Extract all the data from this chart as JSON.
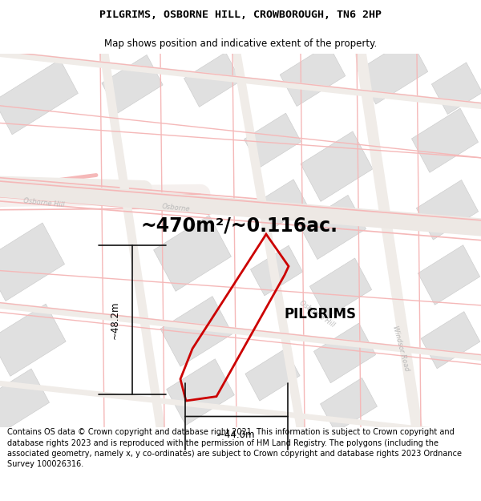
{
  "title": "PILGRIMS, OSBORNE HILL, CROWBOROUGH, TN6 2HP",
  "subtitle": "Map shows position and indicative extent of the property.",
  "area_text": "~470m²/~0.116ac.",
  "label": "PILGRIMS",
  "dim_width": "~44.0m",
  "dim_height": "~48.2m",
  "footer": "Contains OS data © Crown copyright and database right 2021. This information is subject to Crown copyright and database rights 2023 and is reproduced with the permission of HM Land Registry. The polygons (including the associated geometry, namely x, y co-ordinates) are subject to Crown copyright and database rights 2023 Ordnance Survey 100026316.",
  "bg_color": "#ffffff",
  "map_bg": "#ffffff",
  "road_color": "#f5b8b8",
  "road_fill": "#f0f0f0",
  "building_color": "#e0e0e0",
  "building_edge": "#c8c8c8",
  "title_fontsize": 9.5,
  "subtitle_fontsize": 8.5,
  "area_fontsize": 17,
  "label_fontsize": 12,
  "footer_fontsize": 7.0,
  "red_color": "#cc0000",
  "road_label_color": "#b8b8b8",
  "dim_arrow_color": "#111111"
}
